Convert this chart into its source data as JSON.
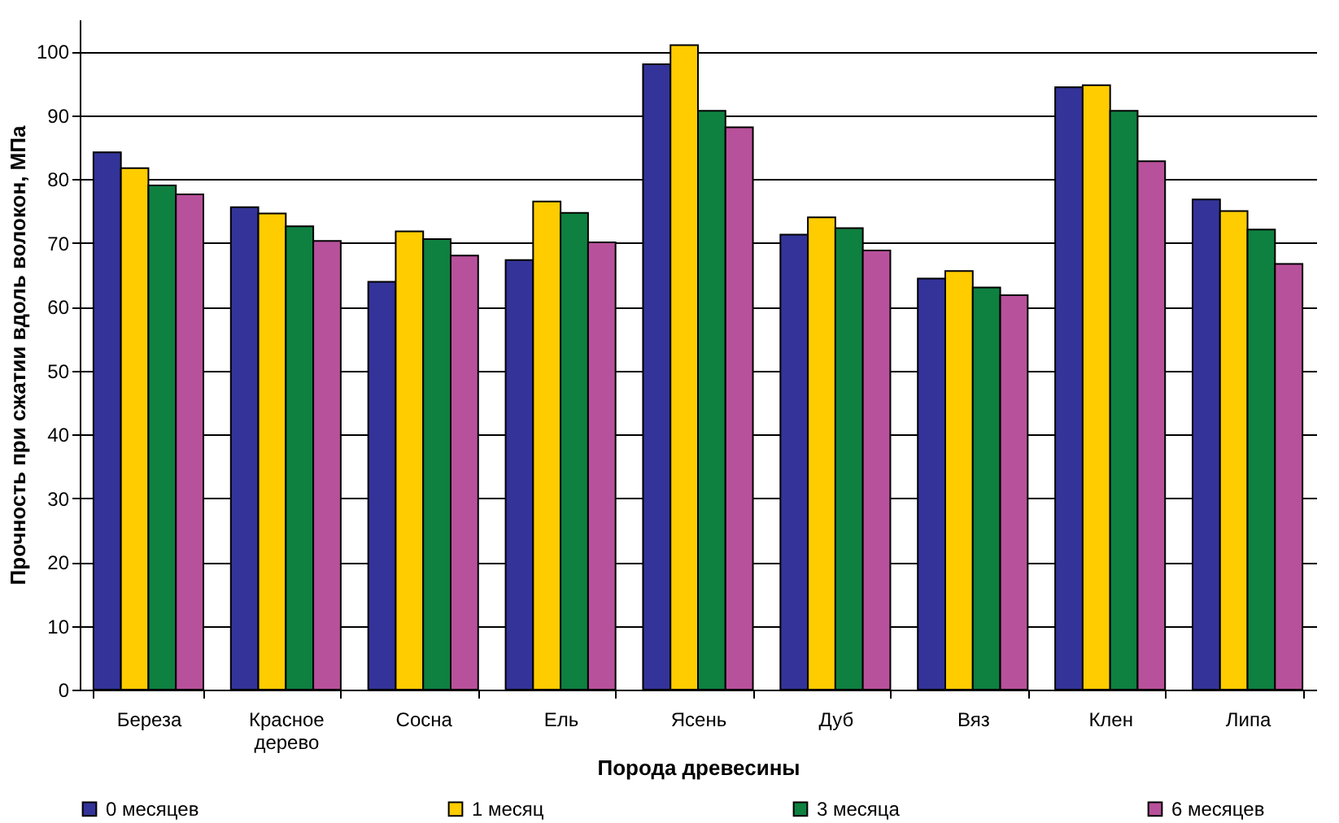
{
  "chart_data": {
    "type": "bar",
    "xlabel": "Порода древесины",
    "ylabel": "Прочность при сжатии вдоль волокон, МПа",
    "categories": [
      "Береза",
      "Красное дерево",
      "Сосна",
      "Ель",
      "Ясень",
      "Дуб",
      "Вяз",
      "Клен",
      "Липа"
    ],
    "series": [
      {
        "name": "0 месяцев",
        "color": "#333399",
        "values": [
          84.2,
          75.6,
          63.9,
          67.3,
          98.0,
          71.3,
          64.4,
          94.4,
          76.8
        ]
      },
      {
        "name": "1 месяц",
        "color": "#ffcc00",
        "values": [
          81.7,
          74.6,
          71.8,
          76.5,
          101.0,
          74.0,
          65.6,
          94.7,
          75.0
        ]
      },
      {
        "name": "3 месяца",
        "color": "#0e8040",
        "values": [
          79.0,
          72.6,
          70.6,
          74.7,
          90.7,
          72.3,
          63.0,
          90.7,
          72.1
        ]
      },
      {
        "name": "6 месяцев",
        "color": "#b8519b",
        "values": [
          77.6,
          70.3,
          68.0,
          70.1,
          88.1,
          68.8,
          61.8,
          82.8,
          66.7
        ]
      }
    ],
    "ylim": [
      0,
      105
    ],
    "yticks": [
      0,
      10,
      20,
      30,
      40,
      50,
      60,
      70,
      80,
      90,
      100
    ],
    "grid": "y",
    "legend": "bottom"
  }
}
